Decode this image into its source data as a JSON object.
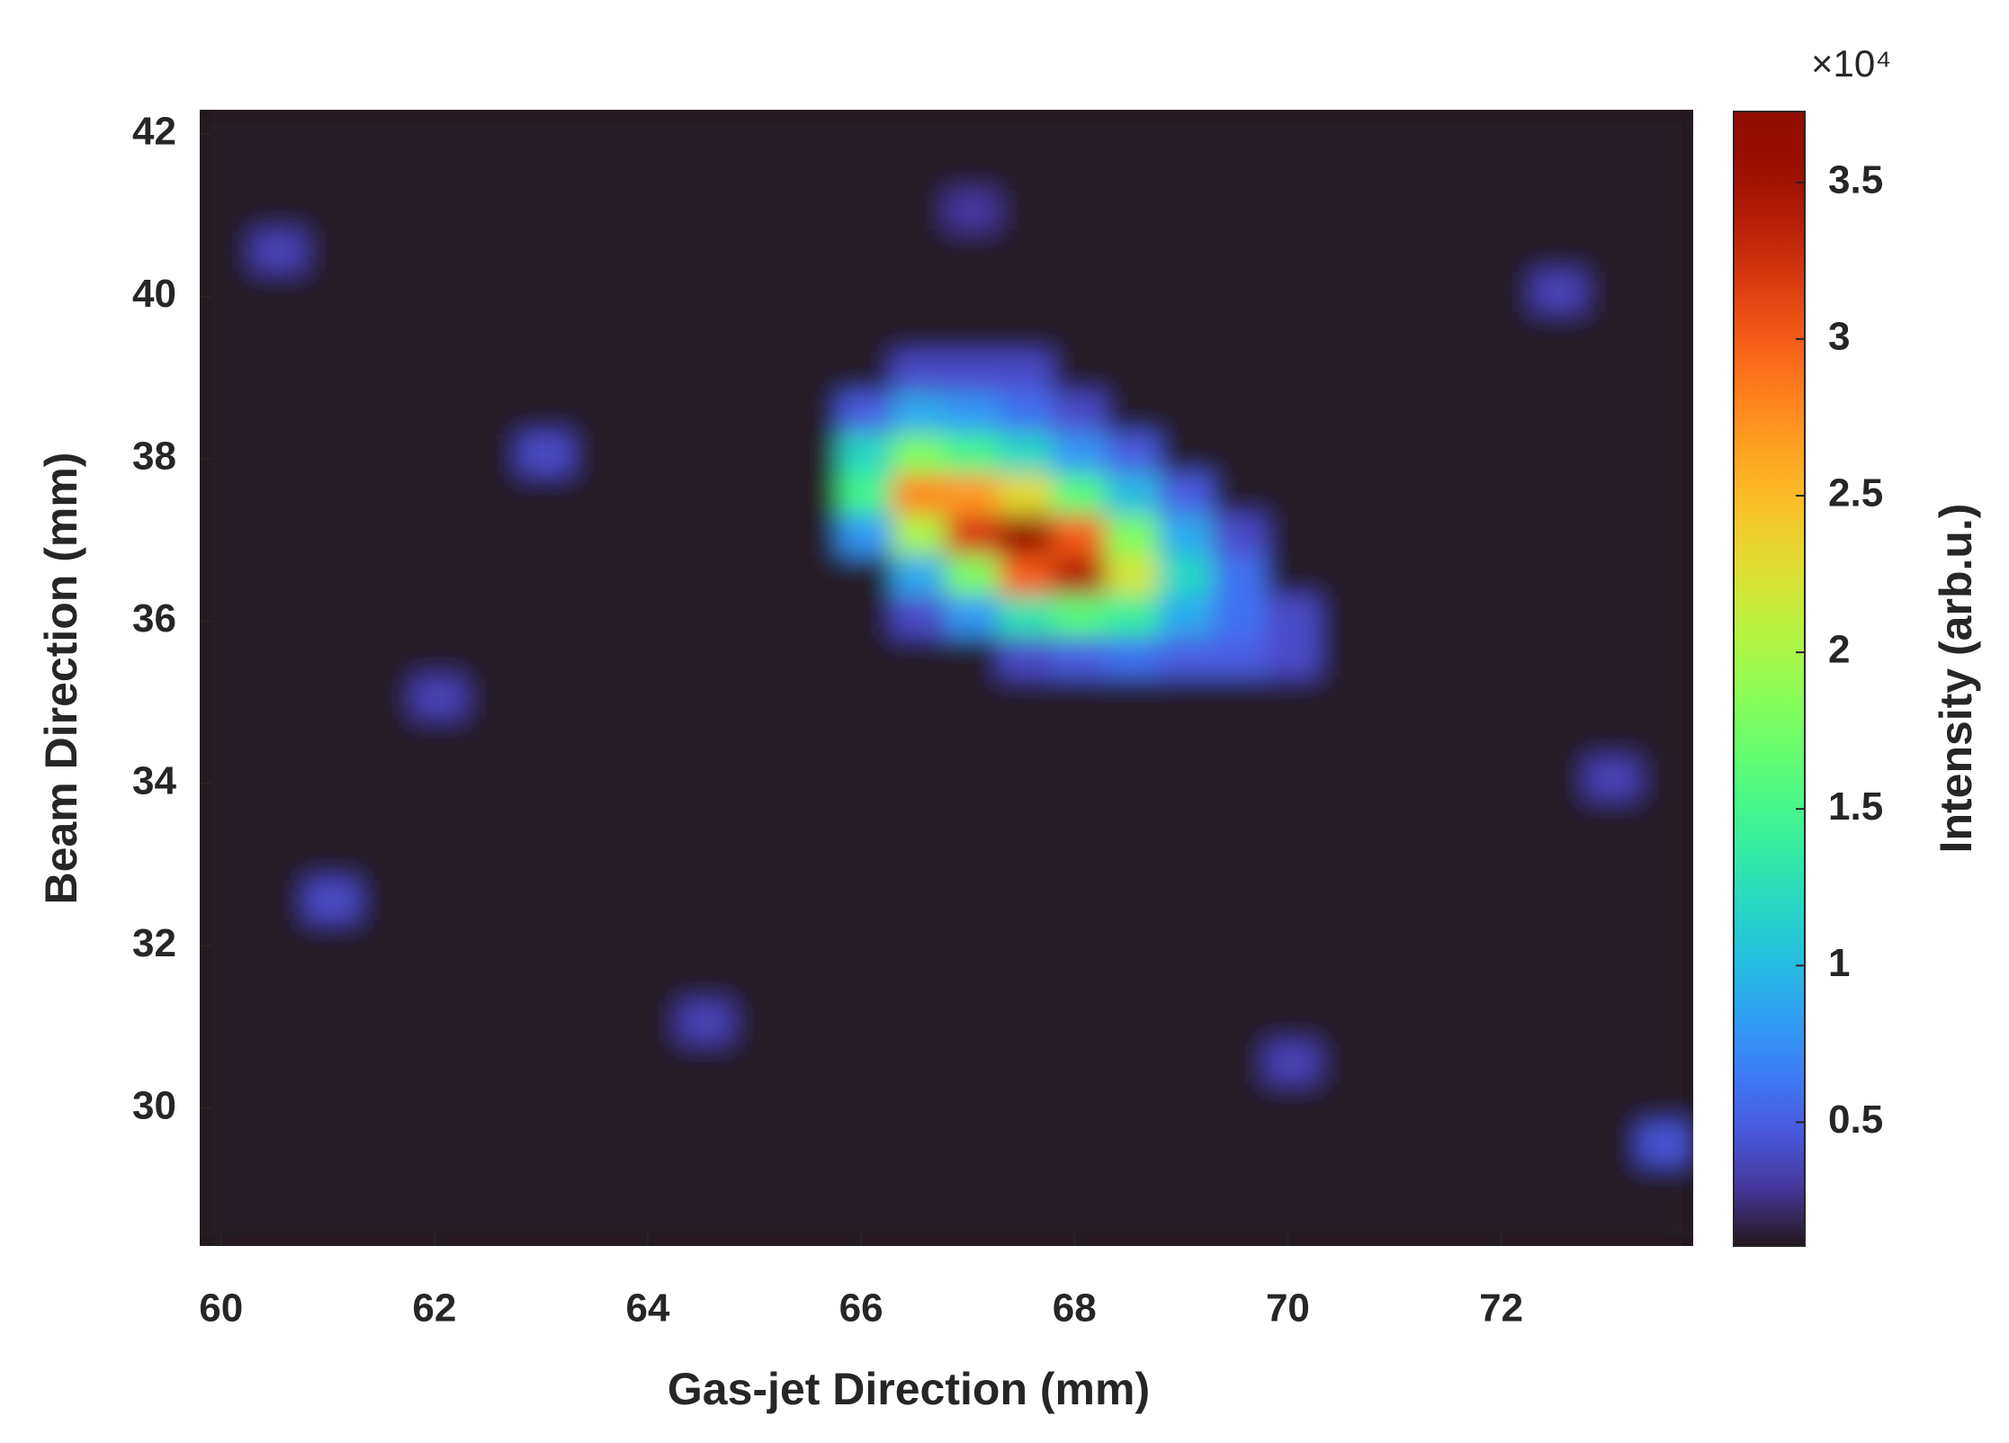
{
  "chart_data": {
    "type": "heatmap",
    "xlabel": "Gas-jet Direction (mm)",
    "ylabel": "Beam Direction (mm)",
    "colorbar_label": "Intensity (arb.u.)",
    "colorbar_multiplier": "×10⁴",
    "x": [
      60.05,
      60.55,
      61.05,
      61.55,
      62.05,
      62.55,
      63.05,
      63.55,
      64.05,
      64.55,
      65.05,
      65.55,
      66.05,
      66.55,
      67.05,
      67.55,
      68.05,
      68.55,
      69.05,
      69.55,
      70.05,
      70.55,
      71.05,
      71.55,
      72.05,
      72.55,
      73.05,
      73.55
    ],
    "y": [
      42.05,
      41.55,
      41.05,
      40.55,
      40.05,
      39.55,
      39.05,
      38.55,
      38.05,
      37.55,
      37.05,
      36.55,
      36.05,
      35.55,
      35.05,
      34.55,
      34.05,
      33.55,
      33.05,
      32.55,
      32.05,
      31.55,
      31.05,
      30.55,
      30.05,
      29.55,
      29.05,
      28.55
    ],
    "z": [
      [
        0.12,
        0.12,
        0.12,
        0.12,
        0.12,
        0.12,
        0.12,
        0.12,
        0.12,
        0.12,
        0.12,
        0.12,
        0.12,
        0.12,
        0.12,
        0.12,
        0.12,
        0.12,
        0.12,
        0.12,
        0.12,
        0.12,
        0.12,
        0.12,
        0.12,
        0.12,
        0.12,
        0.12
      ],
      [
        0.12,
        0.12,
        0.12,
        0.12,
        0.12,
        0.12,
        0.12,
        0.12,
        0.12,
        0.12,
        0.12,
        0.12,
        0.12,
        0.12,
        0.12,
        0.12,
        0.12,
        0.12,
        0.12,
        0.12,
        0.12,
        0.12,
        0.12,
        0.12,
        0.12,
        0.12,
        0.12,
        0.12
      ],
      [
        0.12,
        0.12,
        0.12,
        0.12,
        0.12,
        0.12,
        0.12,
        0.12,
        0.12,
        0.12,
        0.12,
        0.12,
        0.12,
        0.12,
        0.3,
        0.12,
        0.12,
        0.12,
        0.12,
        0.12,
        0.12,
        0.12,
        0.12,
        0.12,
        0.12,
        0.12,
        0.12,
        0.12
      ],
      [
        0.12,
        0.35,
        0.12,
        0.12,
        0.12,
        0.12,
        0.12,
        0.12,
        0.12,
        0.12,
        0.12,
        0.12,
        0.12,
        0.12,
        0.12,
        0.12,
        0.12,
        0.12,
        0.12,
        0.12,
        0.12,
        0.12,
        0.12,
        0.12,
        0.12,
        0.12,
        0.12,
        0.12
      ],
      [
        0.12,
        0.12,
        0.12,
        0.12,
        0.12,
        0.12,
        0.12,
        0.12,
        0.12,
        0.12,
        0.12,
        0.12,
        0.12,
        0.12,
        0.12,
        0.12,
        0.12,
        0.12,
        0.12,
        0.12,
        0.12,
        0.12,
        0.12,
        0.12,
        0.12,
        0.35,
        0.12,
        0.12
      ],
      [
        0.12,
        0.12,
        0.12,
        0.12,
        0.12,
        0.12,
        0.12,
        0.12,
        0.12,
        0.12,
        0.12,
        0.12,
        0.12,
        0.12,
        0.12,
        0.12,
        0.12,
        0.12,
        0.12,
        0.12,
        0.12,
        0.12,
        0.12,
        0.12,
        0.12,
        0.12,
        0.12,
        0.12
      ],
      [
        0.12,
        0.12,
        0.12,
        0.12,
        0.12,
        0.12,
        0.12,
        0.12,
        0.12,
        0.12,
        0.12,
        0.12,
        0.12,
        0.4,
        0.4,
        0.4,
        0.12,
        0.12,
        0.12,
        0.12,
        0.12,
        0.12,
        0.12,
        0.12,
        0.12,
        0.12,
        0.12,
        0.12
      ],
      [
        0.12,
        0.12,
        0.12,
        0.12,
        0.12,
        0.12,
        0.12,
        0.12,
        0.12,
        0.12,
        0.12,
        0.12,
        0.5,
        0.9,
        0.8,
        0.6,
        0.4,
        0.12,
        0.12,
        0.12,
        0.12,
        0.12,
        0.12,
        0.12,
        0.12,
        0.12,
        0.12,
        0.12
      ],
      [
        0.12,
        0.12,
        0.12,
        0.12,
        0.12,
        0.12,
        0.4,
        0.12,
        0.12,
        0.12,
        0.12,
        0.12,
        1.2,
        1.8,
        1.5,
        1.2,
        0.8,
        0.5,
        0.12,
        0.12,
        0.12,
        0.12,
        0.12,
        0.12,
        0.12,
        0.12,
        0.12,
        0.12
      ],
      [
        0.12,
        0.12,
        0.12,
        0.12,
        0.12,
        0.12,
        0.12,
        0.12,
        0.12,
        0.12,
        0.12,
        0.12,
        1.5,
        2.8,
        2.7,
        2.3,
        1.6,
        1.0,
        0.5,
        0.12,
        0.12,
        0.12,
        0.12,
        0.12,
        0.12,
        0.12,
        0.12,
        0.12
      ],
      [
        0.12,
        0.12,
        0.12,
        0.12,
        0.12,
        0.12,
        0.12,
        0.12,
        0.12,
        0.12,
        0.12,
        0.12,
        0.8,
        2.0,
        3.2,
        3.6,
        3.0,
        1.8,
        0.9,
        0.4,
        0.12,
        0.12,
        0.12,
        0.12,
        0.12,
        0.12,
        0.12,
        0.12
      ],
      [
        0.12,
        0.12,
        0.12,
        0.12,
        0.12,
        0.12,
        0.12,
        0.12,
        0.12,
        0.12,
        0.12,
        0.12,
        0.12,
        0.9,
        1.8,
        3.0,
        3.4,
        2.2,
        1.2,
        0.6,
        0.12,
        0.12,
        0.12,
        0.12,
        0.12,
        0.12,
        0.12,
        0.12
      ],
      [
        0.12,
        0.12,
        0.12,
        0.12,
        0.12,
        0.12,
        0.12,
        0.12,
        0.12,
        0.12,
        0.12,
        0.12,
        0.12,
        0.4,
        0.8,
        1.3,
        1.6,
        1.4,
        0.9,
        0.6,
        0.4,
        0.12,
        0.12,
        0.12,
        0.12,
        0.12,
        0.12,
        0.12
      ],
      [
        0.12,
        0.12,
        0.12,
        0.12,
        0.12,
        0.12,
        0.12,
        0.12,
        0.12,
        0.12,
        0.12,
        0.12,
        0.12,
        0.12,
        0.12,
        0.4,
        0.5,
        0.6,
        0.5,
        0.5,
        0.4,
        0.12,
        0.12,
        0.12,
        0.12,
        0.12,
        0.12,
        0.12
      ],
      [
        0.12,
        0.12,
        0.12,
        0.12,
        0.35,
        0.12,
        0.12,
        0.12,
        0.12,
        0.12,
        0.12,
        0.12,
        0.12,
        0.12,
        0.12,
        0.12,
        0.12,
        0.12,
        0.12,
        0.12,
        0.12,
        0.12,
        0.12,
        0.12,
        0.12,
        0.12,
        0.12,
        0.12
      ],
      [
        0.12,
        0.12,
        0.12,
        0.12,
        0.12,
        0.12,
        0.12,
        0.12,
        0.12,
        0.12,
        0.12,
        0.12,
        0.12,
        0.12,
        0.12,
        0.12,
        0.12,
        0.12,
        0.12,
        0.12,
        0.12,
        0.12,
        0.12,
        0.12,
        0.12,
        0.12,
        0.12,
        0.12
      ],
      [
        0.12,
        0.12,
        0.12,
        0.12,
        0.12,
        0.12,
        0.12,
        0.12,
        0.12,
        0.12,
        0.12,
        0.12,
        0.12,
        0.12,
        0.12,
        0.12,
        0.12,
        0.12,
        0.12,
        0.12,
        0.12,
        0.12,
        0.12,
        0.12,
        0.12,
        0.12,
        0.35,
        0.12
      ],
      [
        0.12,
        0.12,
        0.12,
        0.12,
        0.12,
        0.12,
        0.12,
        0.12,
        0.12,
        0.12,
        0.12,
        0.12,
        0.12,
        0.12,
        0.12,
        0.12,
        0.12,
        0.12,
        0.12,
        0.12,
        0.12,
        0.12,
        0.12,
        0.12,
        0.12,
        0.12,
        0.12,
        0.12
      ],
      [
        0.12,
        0.12,
        0.12,
        0.12,
        0.12,
        0.12,
        0.12,
        0.12,
        0.12,
        0.12,
        0.12,
        0.12,
        0.12,
        0.12,
        0.12,
        0.12,
        0.12,
        0.12,
        0.12,
        0.12,
        0.12,
        0.12,
        0.12,
        0.12,
        0.12,
        0.12,
        0.12,
        0.12
      ],
      [
        0.12,
        0.12,
        0.4,
        0.12,
        0.12,
        0.12,
        0.12,
        0.12,
        0.12,
        0.12,
        0.12,
        0.12,
        0.12,
        0.12,
        0.12,
        0.12,
        0.12,
        0.12,
        0.12,
        0.12,
        0.12,
        0.12,
        0.12,
        0.12,
        0.12,
        0.12,
        0.12,
        0.12
      ],
      [
        0.12,
        0.12,
        0.12,
        0.12,
        0.12,
        0.12,
        0.12,
        0.12,
        0.12,
        0.12,
        0.12,
        0.12,
        0.12,
        0.12,
        0.12,
        0.12,
        0.12,
        0.12,
        0.12,
        0.12,
        0.12,
        0.12,
        0.12,
        0.12,
        0.12,
        0.12,
        0.12,
        0.12
      ],
      [
        0.12,
        0.12,
        0.12,
        0.12,
        0.12,
        0.12,
        0.12,
        0.12,
        0.12,
        0.12,
        0.12,
        0.12,
        0.12,
        0.12,
        0.12,
        0.12,
        0.12,
        0.12,
        0.12,
        0.12,
        0.12,
        0.12,
        0.12,
        0.12,
        0.12,
        0.12,
        0.12,
        0.12
      ],
      [
        0.12,
        0.12,
        0.12,
        0.12,
        0.12,
        0.12,
        0.12,
        0.12,
        0.12,
        0.35,
        0.12,
        0.12,
        0.12,
        0.12,
        0.12,
        0.12,
        0.12,
        0.12,
        0.12,
        0.12,
        0.12,
        0.12,
        0.12,
        0.12,
        0.12,
        0.12,
        0.12,
        0.12
      ],
      [
        0.12,
        0.12,
        0.12,
        0.12,
        0.12,
        0.12,
        0.12,
        0.12,
        0.12,
        0.12,
        0.12,
        0.12,
        0.12,
        0.12,
        0.12,
        0.12,
        0.12,
        0.12,
        0.12,
        0.12,
        0.35,
        0.12,
        0.12,
        0.12,
        0.12,
        0.12,
        0.12,
        0.12
      ],
      [
        0.12,
        0.12,
        0.12,
        0.12,
        0.12,
        0.12,
        0.12,
        0.12,
        0.12,
        0.12,
        0.12,
        0.12,
        0.12,
        0.12,
        0.12,
        0.12,
        0.12,
        0.12,
        0.12,
        0.12,
        0.12,
        0.12,
        0.12,
        0.12,
        0.12,
        0.12,
        0.12,
        0.12
      ],
      [
        0.12,
        0.12,
        0.12,
        0.12,
        0.12,
        0.12,
        0.12,
        0.12,
        0.12,
        0.12,
        0.12,
        0.12,
        0.12,
        0.12,
        0.12,
        0.12,
        0.12,
        0.12,
        0.12,
        0.12,
        0.12,
        0.12,
        0.12,
        0.12,
        0.12,
        0.12,
        0.12,
        0.45
      ],
      [
        0.12,
        0.12,
        0.12,
        0.12,
        0.12,
        0.12,
        0.12,
        0.12,
        0.12,
        0.12,
        0.12,
        0.12,
        0.12,
        0.12,
        0.12,
        0.12,
        0.12,
        0.12,
        0.12,
        0.12,
        0.12,
        0.12,
        0.12,
        0.12,
        0.12,
        0.12,
        0.12,
        0.12
      ],
      [
        0.12,
        0.12,
        0.12,
        0.12,
        0.12,
        0.12,
        0.12,
        0.12,
        0.12,
        0.12,
        0.12,
        0.12,
        0.12,
        0.12,
        0.12,
        0.12,
        0.12,
        0.12,
        0.12,
        0.12,
        0.12,
        0.12,
        0.12,
        0.12,
        0.12,
        0.12,
        0.12,
        0.12
      ]
    ],
    "xlim": [
      59.8,
      73.8
    ],
    "ylim": [
      28.3,
      42.3
    ],
    "clim": [
      0.105,
      3.726
    ],
    "xticks": [
      60,
      62,
      64,
      66,
      68,
      70,
      72
    ],
    "yticks": [
      30,
      32,
      34,
      36,
      38,
      40,
      42
    ],
    "cticks": [
      0.5,
      1,
      1.5,
      2,
      2.5,
      3,
      3.5
    ],
    "colormap": "turbo"
  }
}
